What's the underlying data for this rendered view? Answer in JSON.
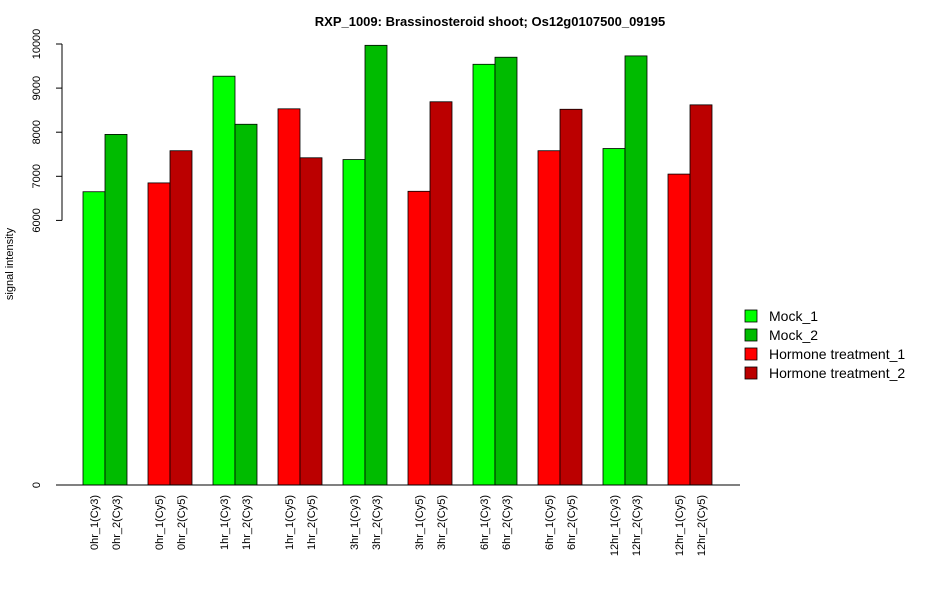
{
  "chart_data": {
    "type": "bar",
    "title": "RXP_1009: Brassinosteroid shoot; Os12g0107500_09195",
    "xlabel": "",
    "ylabel": "signal intensity",
    "ylim": [
      0,
      10000
    ],
    "y_tick_labels": [
      "0",
      "6000",
      "7000",
      "8000",
      "9000",
      "10000"
    ],
    "y_ticks": [
      0,
      6000,
      7000,
      8000,
      9000,
      10000
    ],
    "grid": false,
    "legend_position": "right",
    "series": [
      {
        "name": "Mock_1",
        "color": "#00ff00"
      },
      {
        "name": "Mock_2",
        "color": "#00bb00"
      },
      {
        "name": "Hormone treatment_1",
        "color": "#ff0000"
      },
      {
        "name": "Hormone treatment_2",
        "color": "#bb0000"
      }
    ],
    "categories": [
      "0hr_1(Cy3)",
      "0hr_2(Cy3)",
      "0hr_1(Cy5)",
      "0hr_2(Cy5)",
      "1hr_1(Cy3)",
      "1hr_2(Cy3)",
      "1hr_1(Cy5)",
      "1hr_2(Cy5)",
      "3hr_1(Cy3)",
      "3hr_2(Cy3)",
      "3hr_1(Cy5)",
      "3hr_2(Cy5)",
      "6hr_1(Cy3)",
      "6hr_2(Cy3)",
      "6hr_1(Cy5)",
      "6hr_2(Cy5)",
      "12hr_1(Cy3)",
      "12hr_2(Cy3)",
      "12hr_1(Cy5)",
      "12hr_2(Cy5)"
    ],
    "values": [
      6650,
      7950,
      6850,
      7580,
      9270,
      8180,
      8530,
      7420,
      7380,
      9970,
      6660,
      8690,
      9540,
      9700,
      7580,
      8520,
      7630,
      9730,
      7050,
      8620
    ],
    "bar_series_index": [
      0,
      1,
      2,
      3,
      0,
      1,
      2,
      3,
      0,
      1,
      2,
      3,
      0,
      1,
      2,
      3,
      0,
      1,
      2,
      3
    ]
  }
}
